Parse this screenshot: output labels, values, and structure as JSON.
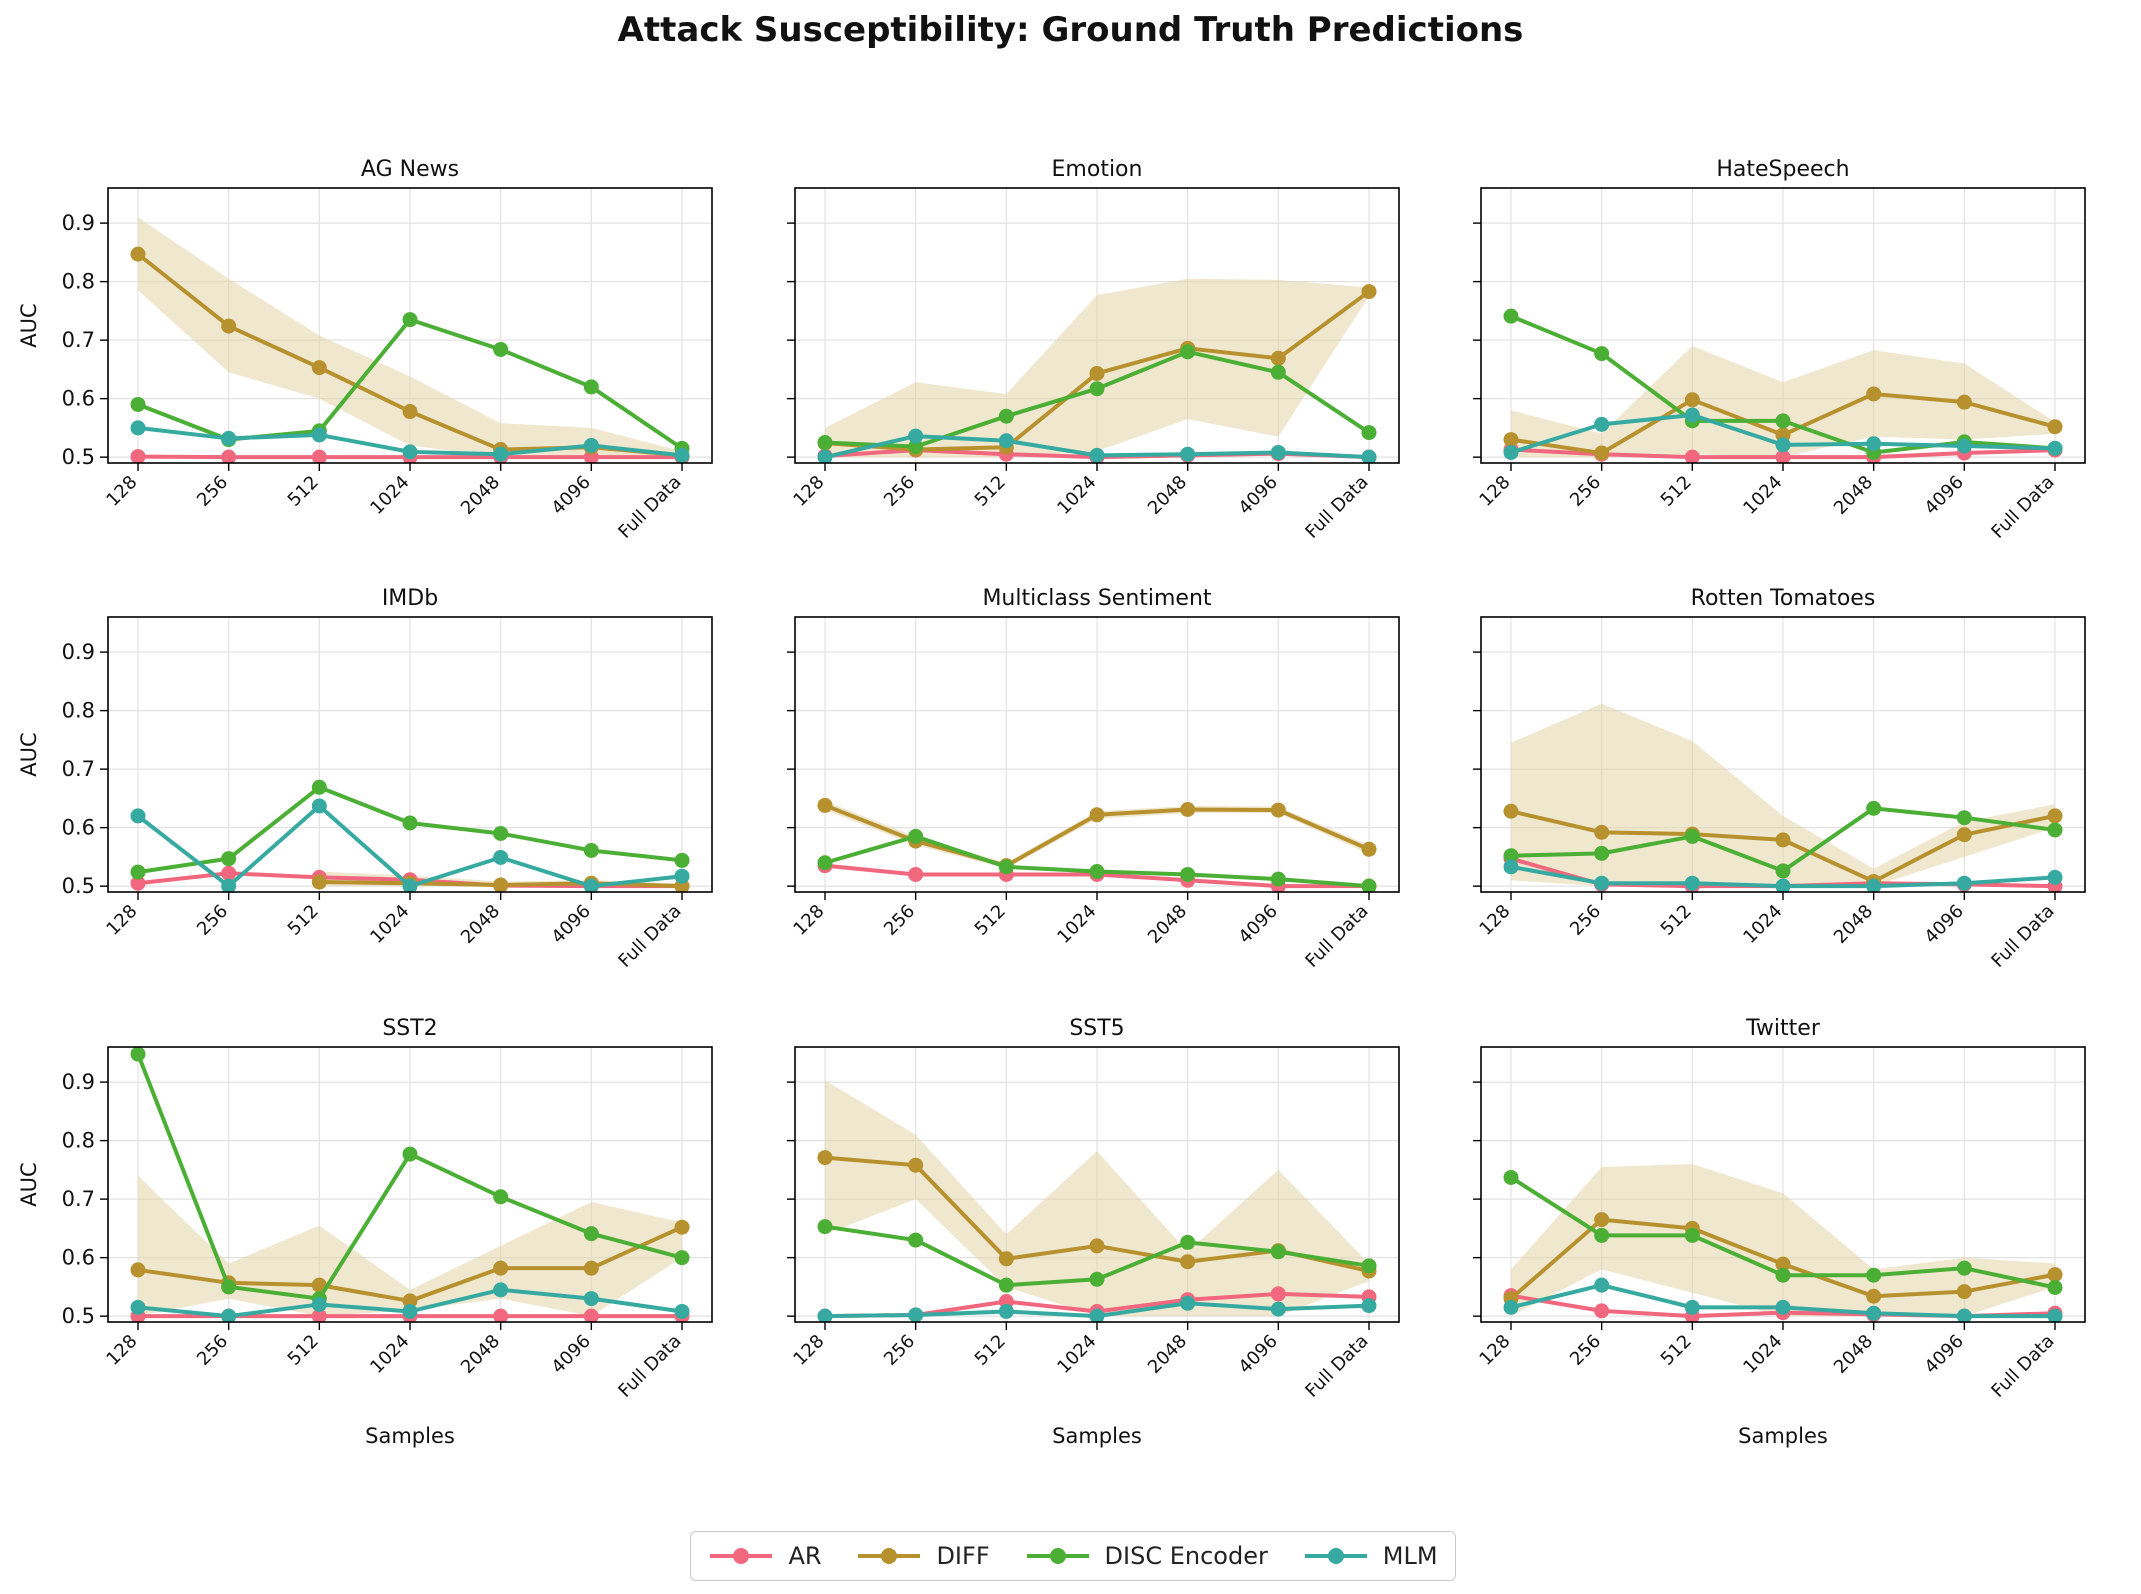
{
  "chart_data": {
    "type": "line",
    "title": "Attack Susceptibility: Ground Truth Predictions",
    "categories": [
      "128",
      "256",
      "512",
      "1024",
      "2048",
      "4096",
      "Full Data"
    ],
    "xlabel": "Samples",
    "ylabel": "AUC",
    "ylim": [
      0.49,
      0.96
    ],
    "yticks": [
      0.5,
      0.6,
      0.7,
      0.8,
      0.9
    ],
    "grid": true,
    "legend_position": "bottom-center",
    "series_styles": [
      {
        "name": "AR",
        "color": "#f0677e"
      },
      {
        "name": "DIFF",
        "color": "#b8912f"
      },
      {
        "name": "DISC Encoder",
        "color": "#4caf35"
      },
      {
        "name": "MLM",
        "color": "#36aaa0"
      }
    ],
    "band_color": "#e3d3a8",
    "panels": [
      {
        "title": "AG News",
        "series": [
          {
            "name": "AR",
            "values": [
              0.501,
              0.5,
              0.5,
              0.5,
              0.5,
              0.5,
              0.5
            ]
          },
          {
            "name": "DIFF",
            "values": [
              0.847,
              0.724,
              0.653,
              0.578,
              0.513,
              0.517,
              0.503
            ],
            "band_low": [
              0.785,
              0.645,
              0.6,
              0.52,
              0.5,
              0.5,
              0.5
            ],
            "band_high": [
              0.91,
              0.805,
              0.708,
              0.638,
              0.558,
              0.55,
              0.51
            ]
          },
          {
            "name": "DISC Encoder",
            "values": [
              0.59,
              0.53,
              0.545,
              0.735,
              0.684,
              0.62,
              0.515
            ]
          },
          {
            "name": "MLM",
            "values": [
              0.55,
              0.532,
              0.538,
              0.509,
              0.505,
              0.52,
              0.503
            ]
          }
        ]
      },
      {
        "title": "Emotion",
        "series": [
          {
            "name": "AR",
            "values": [
              0.502,
              0.512,
              0.505,
              0.5,
              0.503,
              0.506,
              0.5
            ]
          },
          {
            "name": "DIFF",
            "values": [
              0.524,
              0.513,
              0.517,
              0.643,
              0.686,
              0.669,
              0.783
            ],
            "band_low": [
              0.5,
              0.5,
              0.5,
              0.51,
              0.565,
              0.535,
              0.775
            ],
            "band_high": [
              0.55,
              0.628,
              0.608,
              0.777,
              0.805,
              0.803,
              0.79
            ]
          },
          {
            "name": "DISC Encoder",
            "values": [
              0.525,
              0.518,
              0.57,
              0.617,
              0.68,
              0.645,
              0.542
            ]
          },
          {
            "name": "MLM",
            "values": [
              0.5,
              0.536,
              0.528,
              0.503,
              0.505,
              0.508,
              0.5
            ]
          }
        ]
      },
      {
        "title": "HateSpeech",
        "series": [
          {
            "name": "AR",
            "values": [
              0.513,
              0.505,
              0.5,
              0.5,
              0.5,
              0.507,
              0.512
            ]
          },
          {
            "name": "DIFF",
            "values": [
              0.53,
              0.507,
              0.598,
              0.538,
              0.608,
              0.594,
              0.552
            ],
            "band_low": [
              0.5,
              0.5,
              0.505,
              0.5,
              0.535,
              0.53,
              0.54
            ],
            "band_high": [
              0.58,
              0.54,
              0.69,
              0.628,
              0.683,
              0.66,
              0.56
            ]
          },
          {
            "name": "DISC Encoder",
            "values": [
              0.741,
              0.677,
              0.562,
              0.562,
              0.508,
              0.526,
              0.515
            ]
          },
          {
            "name": "MLM",
            "values": [
              0.508,
              0.556,
              0.572,
              0.521,
              0.523,
              0.519,
              0.515
            ]
          }
        ]
      },
      {
        "title": "IMDb",
        "series": [
          {
            "name": "AR",
            "values": [
              0.505,
              0.522,
              0.515,
              0.511,
              0.501,
              0.5,
              0.5
            ]
          },
          {
            "name": "DIFF",
            "values": [
              null,
              null,
              0.507,
              0.505,
              0.502,
              0.505,
              0.5
            ],
            "band_low": [
              null,
              null,
              0.5,
              0.5,
              0.5,
              0.5,
              0.5
            ],
            "band_high": [
              null,
              null,
              0.525,
              0.518,
              0.508,
              0.51,
              0.505
            ]
          },
          {
            "name": "DISC Encoder",
            "values": [
              0.524,
              0.547,
              0.669,
              0.608,
              0.59,
              0.561,
              0.544
            ]
          },
          {
            "name": "MLM",
            "values": [
              0.62,
              0.5,
              0.637,
              0.5,
              0.549,
              0.5,
              0.517
            ]
          }
        ]
      },
      {
        "title": "Multiclass Sentiment",
        "series": [
          {
            "name": "AR",
            "values": [
              0.535,
              0.52,
              0.52,
              0.52,
              0.51,
              0.5,
              0.5
            ]
          },
          {
            "name": "DIFF",
            "values": [
              0.638,
              0.577,
              0.535,
              0.622,
              0.631,
              0.63,
              0.563
            ],
            "band_low": [
              0.63,
              0.57,
              0.53,
              0.615,
              0.625,
              0.625,
              0.555
            ],
            "band_high": [
              0.645,
              0.585,
              0.54,
              0.628,
              0.637,
              0.636,
              0.57
            ]
          },
          {
            "name": "DISC Encoder",
            "values": [
              0.54,
              0.585,
              0.533,
              0.525,
              0.52,
              0.512,
              0.5
            ]
          },
          {
            "name": "MLM",
            "values": [
              null,
              null,
              null,
              null,
              null,
              null,
              null
            ]
          }
        ]
      },
      {
        "title": "Rotten Tomatoes",
        "series": [
          {
            "name": "AR",
            "values": [
              0.547,
              0.503,
              0.5,
              0.5,
              0.505,
              0.503,
              0.5
            ]
          },
          {
            "name": "DIFF",
            "values": [
              0.628,
              0.592,
              0.589,
              0.579,
              0.508,
              0.588,
              0.62
            ],
            "band_low": [
              0.51,
              0.5,
              0.5,
              0.5,
              0.5,
              0.55,
              0.6
            ],
            "band_high": [
              0.745,
              0.812,
              0.748,
              0.62,
              0.53,
              0.61,
              0.64
            ]
          },
          {
            "name": "DISC Encoder",
            "values": [
              0.552,
              0.556,
              0.585,
              0.526,
              0.633,
              0.617,
              0.596
            ]
          },
          {
            "name": "MLM",
            "values": [
              0.533,
              0.505,
              0.505,
              0.5,
              0.5,
              0.505,
              0.515
            ]
          }
        ]
      },
      {
        "title": "SST2",
        "series": [
          {
            "name": "AR",
            "values": [
              0.5,
              0.5,
              0.5,
              0.5,
              0.5,
              0.5,
              0.5
            ]
          },
          {
            "name": "DIFF",
            "values": [
              0.579,
              0.557,
              0.553,
              0.526,
              0.582,
              0.582,
              0.652
            ],
            "band_low": [
              0.5,
              0.53,
              0.5,
              0.51,
              0.53,
              0.5,
              0.6
            ],
            "band_high": [
              0.74,
              0.59,
              0.655,
              0.545,
              0.62,
              0.695,
              0.66
            ]
          },
          {
            "name": "DISC Encoder",
            "values": [
              0.948,
              0.55,
              0.53,
              0.777,
              0.704,
              0.641,
              0.6
            ]
          },
          {
            "name": "MLM",
            "values": [
              0.515,
              0.5,
              0.52,
              0.508,
              0.545,
              0.53,
              0.508
            ]
          }
        ]
      },
      {
        "title": "SST5",
        "series": [
          {
            "name": "AR",
            "values": [
              0.5,
              0.502,
              0.525,
              0.508,
              0.528,
              0.538,
              0.533
            ]
          },
          {
            "name": "DIFF",
            "values": [
              0.771,
              0.758,
              0.598,
              0.62,
              0.593,
              0.612,
              0.577
            ],
            "band_low": [
              0.64,
              0.7,
              0.55,
              0.5,
              0.5,
              0.5,
              0.56
            ],
            "band_high": [
              0.903,
              0.81,
              0.64,
              0.782,
              0.61,
              0.75,
              0.59
            ]
          },
          {
            "name": "DISC Encoder",
            "values": [
              0.653,
              0.63,
              0.553,
              0.563,
              0.626,
              0.61,
              0.586
            ]
          },
          {
            "name": "MLM",
            "values": [
              0.5,
              0.502,
              0.508,
              0.5,
              0.522,
              0.512,
              0.518
            ]
          }
        ]
      },
      {
        "title": "Twitter",
        "series": [
          {
            "name": "AR",
            "values": [
              0.535,
              0.509,
              0.5,
              0.506,
              0.503,
              0.5,
              0.505
            ]
          },
          {
            "name": "DIFF",
            "values": [
              0.53,
              0.665,
              0.65,
              0.589,
              0.534,
              0.542,
              0.571
            ],
            "band_low": [
              0.5,
              0.58,
              0.54,
              0.5,
              0.5,
              0.5,
              0.55
            ],
            "band_high": [
              0.58,
              0.755,
              0.76,
              0.71,
              0.58,
              0.6,
              0.59
            ]
          },
          {
            "name": "DISC Encoder",
            "values": [
              0.737,
              0.638,
              0.638,
              0.57,
              0.57,
              0.582,
              0.549
            ]
          },
          {
            "name": "MLM",
            "values": [
              0.515,
              0.553,
              0.515,
              0.515,
              0.505,
              0.5,
              0.5
            ]
          }
        ]
      }
    ]
  }
}
